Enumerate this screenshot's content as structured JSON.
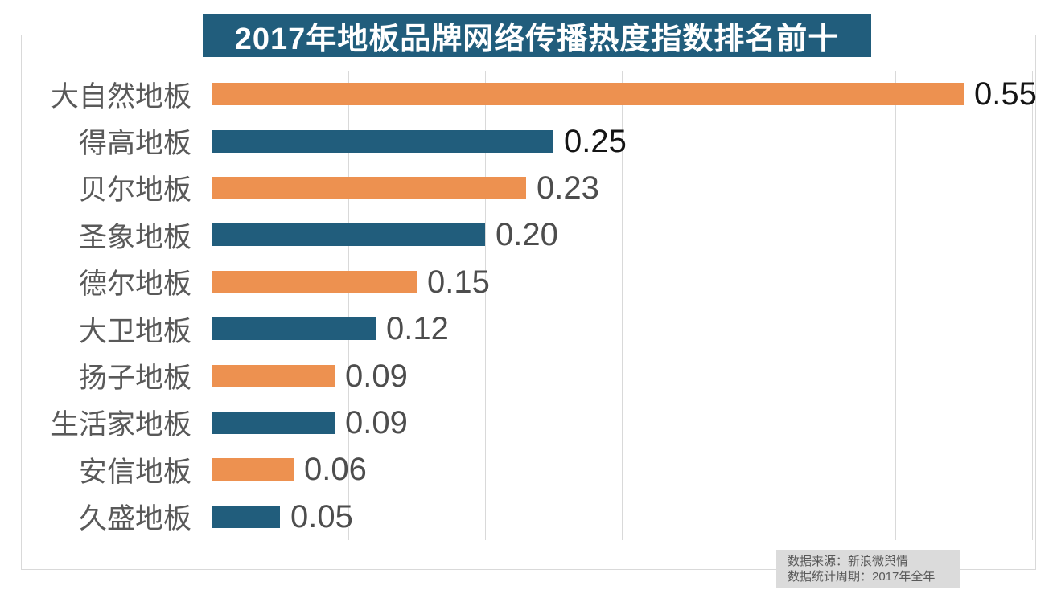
{
  "title": "2017年地板品牌网络传播热度指数排名前十",
  "footer": {
    "source_line": "数据来源：新浪微舆情",
    "period_line": "数据统计周期：2017年全年"
  },
  "colors": {
    "banner_bg": "#215d7c",
    "bar_orange": "#ed9150",
    "bar_blue": "#215d7c",
    "gridline": "#d9d9d9",
    "chart_border": "#d9d9d9",
    "category_label": "#595959",
    "value_label_dark": "#141414",
    "value_label_gray": "#4d4d4d",
    "footer_bg": "#dbdbdb",
    "footer_text": "#595959",
    "title_text": "#ffffff"
  },
  "chart_data": {
    "type": "bar",
    "orientation": "horizontal",
    "title": "2017年地板品牌网络传播热度指数排名前十",
    "categories": [
      "大自然地板",
      "得高地板",
      "贝尔地板",
      "圣象地板",
      "德尔地板",
      "大卫地板",
      "扬子地板",
      "生活家地板",
      "安信地板",
      "久盛地板"
    ],
    "values": [
      0.55,
      0.25,
      0.23,
      0.2,
      0.15,
      0.12,
      0.09,
      0.09,
      0.06,
      0.05
    ],
    "value_labels": [
      "0.55",
      "0.25",
      "0.23",
      "0.20",
      "0.15",
      "0.12",
      "0.09",
      "0.09",
      "0.06",
      "0.05"
    ],
    "bar_colors": [
      "#ed9150",
      "#215d7c",
      "#ed9150",
      "#215d7c",
      "#ed9150",
      "#215d7c",
      "#ed9150",
      "#215d7c",
      "#ed9150",
      "#215d7c"
    ],
    "value_label_colors": [
      "#141414",
      "#141414",
      "#4d4d4d",
      "#4d4d4d",
      "#4d4d4d",
      "#4d4d4d",
      "#4d4d4d",
      "#4d4d4d",
      "#4d4d4d",
      "#4d4d4d"
    ],
    "xlabel": "",
    "ylabel": "",
    "xlim": [
      0,
      0.6
    ],
    "grid_step": 0.1,
    "grid": true,
    "legend": false,
    "data_labels": true,
    "source": "数据来源：新浪微舆情",
    "period": "数据统计周期：2017年全年"
  }
}
